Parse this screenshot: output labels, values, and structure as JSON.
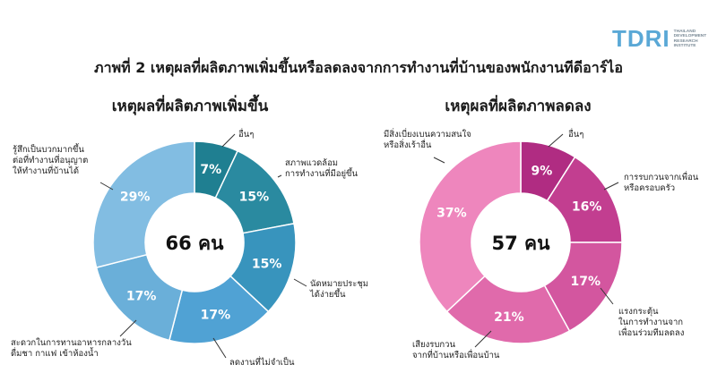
{
  "brand": {
    "logo_text": "TDRI",
    "logo_sub": [
      "THAILAND",
      "DEVELOPMENT",
      "RESEARCH",
      "INSTITUTE"
    ]
  },
  "figure_title": "ภาพที่ 2 เหตุผลที่ผลิตภาพเพิ่มขึ้นหรือลดลงจากการทำงานที่บ้านของพนักงานทีดีอาร์ไอ",
  "chart_data": [
    {
      "type": "pie",
      "title": "เหตุผลที่ผลิตภาพเพิ่มขึ้น",
      "center_label": "66 คน",
      "slices": [
        {
          "label": "อื่นๆ",
          "value": 7,
          "color": "#1f7f91"
        },
        {
          "label": "สภาพแวดล้อม\nการทำงานที่มีอยู่ขึ้น",
          "value": 15,
          "color": "#2a8aa0"
        },
        {
          "label": "นัดหมายประชุม\nได้ง่ายขึ้น",
          "value": 15,
          "color": "#3894bd"
        },
        {
          "label": "ลดงานที่ไม่จำเป็น",
          "value": 17,
          "color": "#50a2d4"
        },
        {
          "label": "สะดวกในการทานอาหารกลางวัน\nดื่มชา กาแฟ เข้าห้องน้ำ",
          "value": 17,
          "color": "#6aafd9"
        },
        {
          "label": "รู้สึกเป็นบวกมากขึ้น\nต่อที่ทำงานที่อนุญาต\nให้ทำงานที่บ้านได้",
          "value": 29,
          "color": "#82bde2"
        }
      ]
    },
    {
      "type": "pie",
      "title": "เหตุผลที่ผลิตภาพลดลง",
      "center_label": "57 คน",
      "slices": [
        {
          "label": "อื่นๆ",
          "value": 9,
          "color": "#b02c82"
        },
        {
          "label": "การรบกวนจากเพื่อน\nหรือครอบครัว",
          "value": 16,
          "color": "#c23e90"
        },
        {
          "label": "แรงกระตุ้น\nในการทำงานจาก\nเพื่อนร่วมทีมลดลง",
          "value": 17,
          "color": "#d3569f"
        },
        {
          "label": "เสียงรบกวน\nจากที่บ้านหรือเพื่อนบ้าน",
          "value": 21,
          "color": "#e06aab"
        },
        {
          "label": "มีสิ่งเบี่ยงเบนความสนใจ\nหรือสิ่งเร้าอื่น",
          "value": 37,
          "color": "#ee86bd"
        }
      ]
    }
  ]
}
